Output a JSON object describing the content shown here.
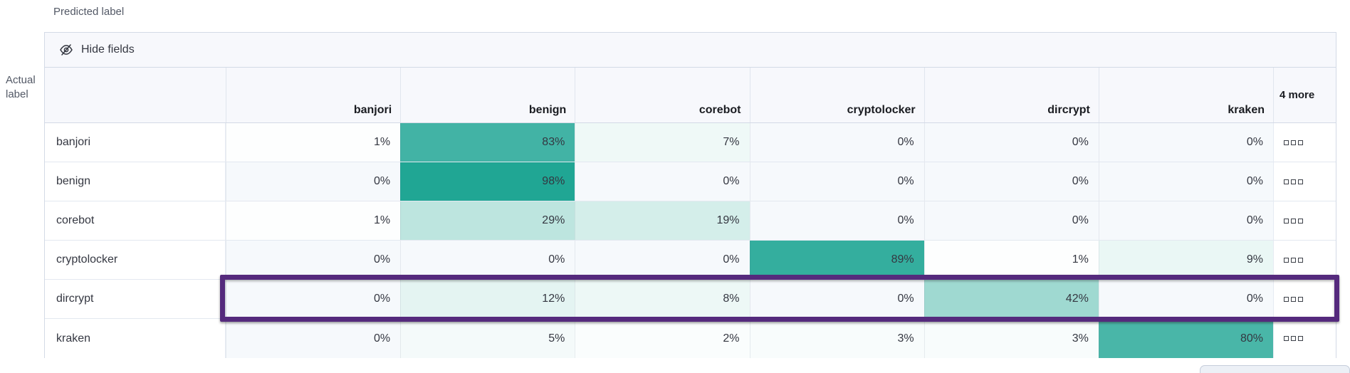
{
  "page": {
    "predicted_axis_label": "Predicted label",
    "actual_axis_label": "Actual label"
  },
  "toolbar": {
    "hide_fields_label": "Hide fields",
    "hide_fields_icon": "eye-closed-icon"
  },
  "row_actions_icon": "boxes-ellipsis-icon",
  "chart_data": {
    "type": "heatmap",
    "title": "Confusion matrix (normalized %): Actual label vs Predicted label",
    "columns": [
      "banjori",
      "benign",
      "corebot",
      "cryptolocker",
      "dircrypt",
      "kraken"
    ],
    "more_columns_label": "4 more",
    "value_suffix": "%",
    "rows": [
      {
        "label": "banjori",
        "values": [
          1,
          83,
          7,
          0,
          0,
          0
        ],
        "highlighted": false
      },
      {
        "label": "benign",
        "values": [
          0,
          98,
          0,
          0,
          0,
          0
        ],
        "highlighted": false
      },
      {
        "label": "corebot",
        "values": [
          1,
          29,
          19,
          0,
          0,
          0
        ],
        "highlighted": false
      },
      {
        "label": "cryptolocker",
        "values": [
          0,
          0,
          0,
          89,
          1,
          9
        ],
        "highlighted": false
      },
      {
        "label": "dircrypt",
        "values": [
          0,
          12,
          8,
          0,
          42,
          0
        ],
        "highlighted": true
      },
      {
        "label": "kraken",
        "values": [
          0,
          5,
          2,
          3,
          3,
          80
        ],
        "highlighted": false
      }
    ],
    "legend_position": "none",
    "grid": true,
    "colors": {
      "cell_base_teal": "#1BA492",
      "cell_zero": "#F6F9FC",
      "header_background": "#F7F8FC",
      "highlight_border": "#552A7D",
      "table_border": "#D3DAE6",
      "text": "#343741"
    }
  }
}
